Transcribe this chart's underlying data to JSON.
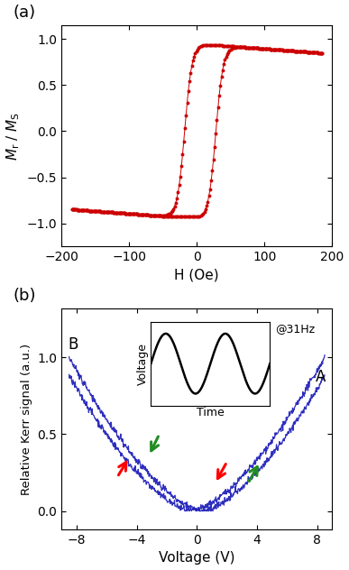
{
  "panel_a": {
    "xlabel": "H (Oe)",
    "ylabel_math": "$M_\\mathrm{r}$ / $M_\\mathrm{S}$",
    "xlim": [
      -200,
      200
    ],
    "ylim": [
      -1.25,
      1.15
    ],
    "yticks": [
      -1.0,
      -0.5,
      0.0,
      0.5,
      1.0
    ],
    "xticks": [
      -200,
      -100,
      0,
      100,
      200
    ],
    "color": "#cc0000",
    "label": "(a)",
    "Hc_upper": -18,
    "Hc_lower": 28,
    "Ms": 0.95,
    "slope": -0.00055,
    "sharpness": 11
  },
  "panel_b": {
    "xlabel": "Voltage (V)",
    "ylabel": "Relative Kerr signal (a.u.)",
    "xlim": [
      -9,
      9
    ],
    "ylim": [
      -0.12,
      1.32
    ],
    "yticks": [
      0.0,
      0.5,
      1.0
    ],
    "xticks": [
      -8,
      -4,
      0,
      4,
      8
    ],
    "color": "#2222bb",
    "label": "(b)",
    "label_A": "A",
    "label_B": "B",
    "inset_label": "@31Hz",
    "V_max": 8.5,
    "exponent": 1.55,
    "shift_fwd": 0.35,
    "shift_ret": -0.35,
    "noise_std": 0.012
  }
}
